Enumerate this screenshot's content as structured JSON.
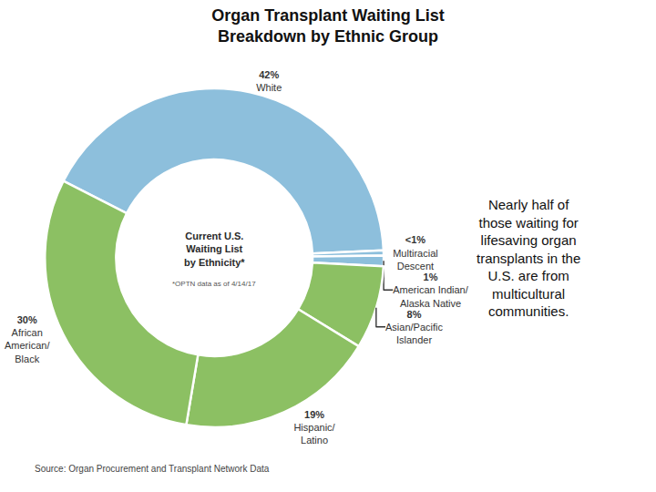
{
  "chart_data": {
    "type": "pie",
    "title": "Organ Transplant Waiting List\nBreakdown by Ethnic Group",
    "categories": [
      "White",
      "Multiracial\nDescent",
      "American Indian/\nAlaska Native",
      "Asian/Pacific\nIslander",
      "Hispanic/\nLatino",
      "African\nAmerican/\nBlack"
    ],
    "values": [
      42,
      0.5,
      1,
      8,
      19,
      30
    ],
    "value_labels": [
      "42%",
      "<1%",
      "1%",
      "8%",
      "19%",
      "30%"
    ],
    "colors": [
      "#8dbfdc",
      "#8dbfdc",
      "#8dbfdc",
      "#8cc063",
      "#8cc063",
      "#8cc063"
    ],
    "data_labels": true,
    "annotations": [
      "Current U.S.\nWaiting List\nby Ethnicity*",
      "*OPTN data as of 4/14/17",
      "Nearly half of\nthose waiting for\nlifesaving organ\ntransplants in the\nU.S. are from\nmulticultural\ncommunities.",
      "Source: Organ Procurement and Transplant Network Data"
    ]
  }
}
